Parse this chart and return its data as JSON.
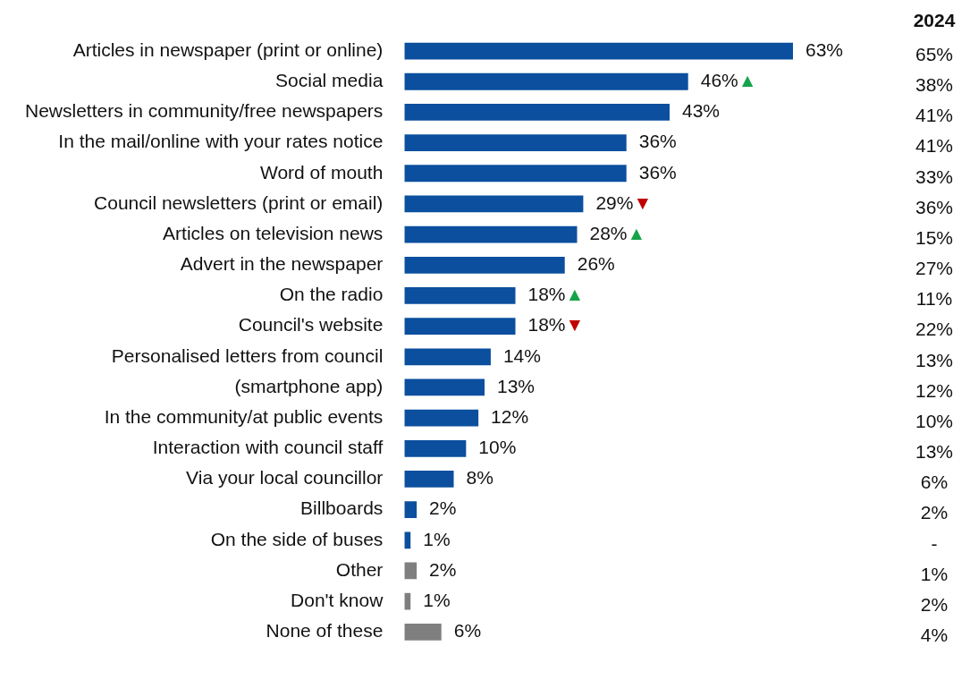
{
  "chart_data": {
    "type": "bar",
    "orientation": "horizontal",
    "categories": [
      "Articles in newspaper (print or online)",
      "Social media",
      "Newsletters in community/free newspapers",
      "In the mail/online with your rates notice",
      "Word of mouth",
      "Council newsletters (print or email)",
      "Articles on television news",
      "Advert in the newspaper",
      "On the radio",
      "Council's website",
      "Personalised letters from council",
      "(smartphone app)",
      "In the community/at public events",
      "Interaction with council staff",
      "Via your local councillor",
      "Billboards",
      "On the side of buses",
      "Other",
      "Don't know",
      "None of these"
    ],
    "values": [
      63,
      46,
      43,
      36,
      36,
      29,
      28,
      26,
      18,
      18,
      14,
      13,
      12,
      10,
      8,
      2,
      1,
      2,
      1,
      6
    ],
    "value_labels": [
      "63%",
      "46%",
      "43%",
      "36%",
      "36%",
      "29%",
      "28%",
      "26%",
      "18%",
      "18%",
      "14%",
      "13%",
      "12%",
      "10%",
      "8%",
      "2%",
      "1%",
      "2%",
      "1%",
      "6%"
    ],
    "colors": [
      "#0b4f9e",
      "#0b4f9e",
      "#0b4f9e",
      "#0b4f9e",
      "#0b4f9e",
      "#0b4f9e",
      "#0b4f9e",
      "#0b4f9e",
      "#0b4f9e",
      "#0b4f9e",
      "#0b4f9e",
      "#0b4f9e",
      "#0b4f9e",
      "#0b4f9e",
      "#0b4f9e",
      "#0b4f9e",
      "#0b4f9e",
      "#7f7f7f",
      "#7f7f7f",
      "#7f7f7f"
    ],
    "legend": false,
    "grid": false,
    "annotations": [
      "2024",
      "65%",
      "38%",
      "41%",
      "41%",
      "33%",
      "36%",
      "15%",
      "27%",
      "11%",
      "22%",
      "13%",
      "12%",
      "10%",
      "13%",
      "6%",
      "2%",
      "-",
      "1%",
      "2%",
      "4%",
      {
        "text": "▲",
        "x": 46,
        "y": "Social media"
      },
      {
        "text": "▼",
        "x": 29,
        "y": "Council newsletters (print or email)"
      },
      {
        "text": "▲",
        "x": 28,
        "y": "Articles on television news"
      },
      {
        "text": "▲",
        "x": 18,
        "y": "On the radio"
      },
      {
        "text": "▼",
        "x": 18,
        "y": "Council's website"
      }
    ]
  }
}
